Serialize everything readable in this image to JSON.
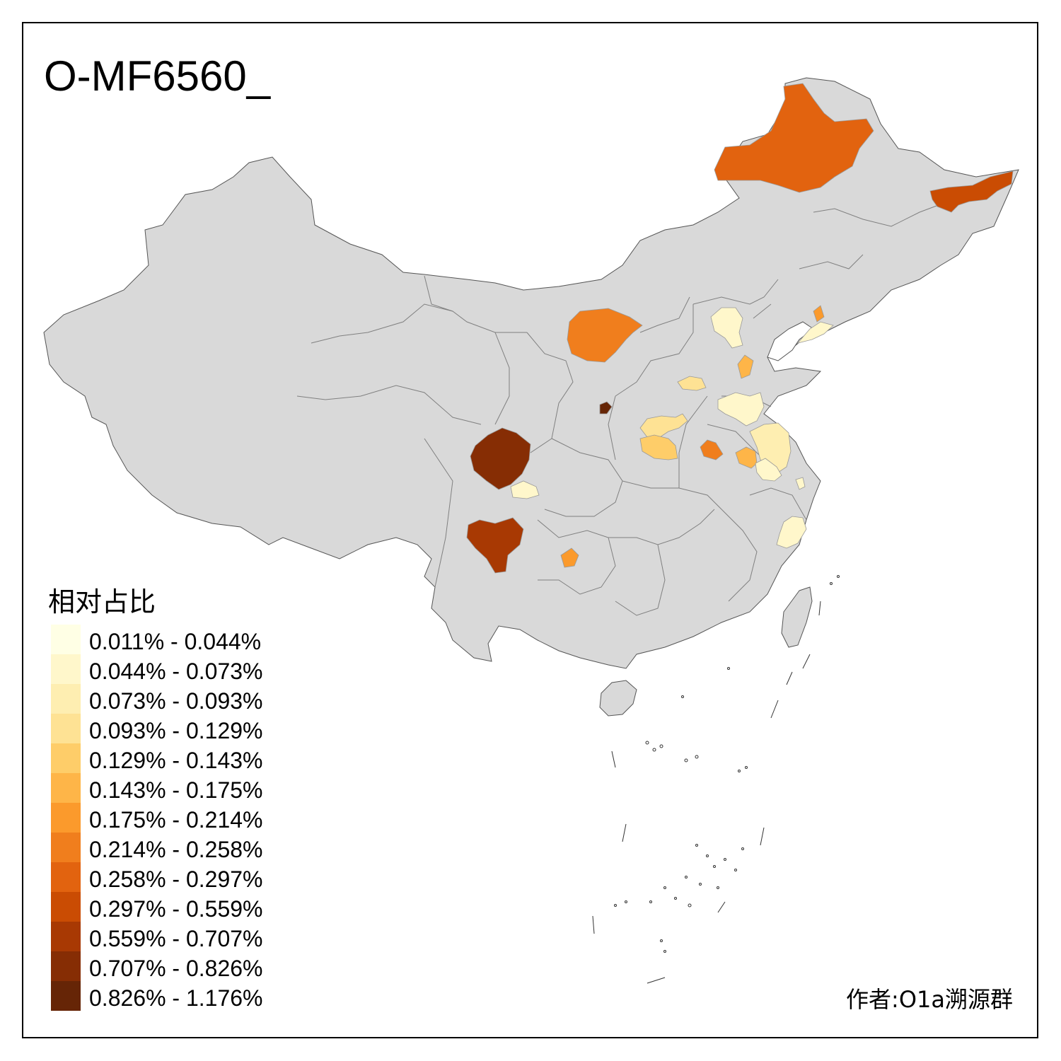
{
  "title": "O-MF6560_",
  "legend": {
    "title": "相对占比",
    "items": [
      {
        "label": "0.011% - 0.044%",
        "color": "#FFFFE5"
      },
      {
        "label": "0.044% - 0.073%",
        "color": "#FFF7CB"
      },
      {
        "label": "0.073% - 0.093%",
        "color": "#FEEEB1"
      },
      {
        "label": "0.093% - 0.129%",
        "color": "#FEE294"
      },
      {
        "label": "0.129% - 0.143%",
        "color": "#FECD69"
      },
      {
        "label": "0.143% - 0.175%",
        "color": "#FEB548"
      },
      {
        "label": "0.175% - 0.214%",
        "color": "#FB9A2C"
      },
      {
        "label": "0.214% - 0.258%",
        "color": "#F07E1D"
      },
      {
        "label": "0.258% - 0.297%",
        "color": "#E2630F"
      },
      {
        "label": "0.297% - 0.559%",
        "color": "#CA4C03"
      },
      {
        "label": "0.559% - 0.707%",
        "color": "#A83903"
      },
      {
        "label": "0.707% - 0.826%",
        "color": "#862D04"
      },
      {
        "label": "0.826% - 1.176%",
        "color": "#662506"
      }
    ]
  },
  "author": "作者:O1a溯源群",
  "colors": {
    "land": "#D9D9D9",
    "border": "#7f7f7f",
    "sea": "#ffffff"
  }
}
